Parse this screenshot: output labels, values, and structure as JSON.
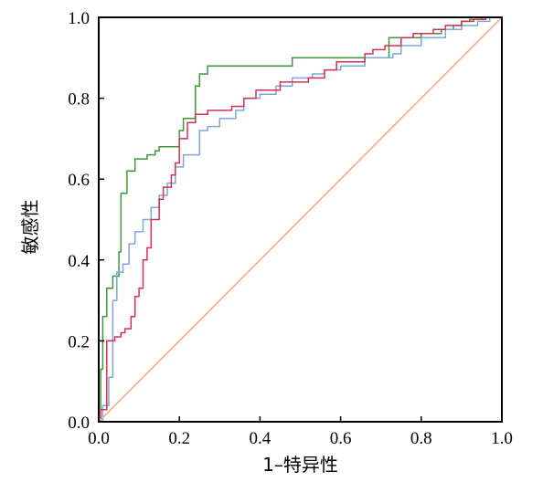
{
  "chart_data": {
    "type": "line",
    "xlabel": "1–特异性",
    "ylabel": "敏感性",
    "xlim": [
      0,
      1
    ],
    "ylim": [
      0,
      1
    ],
    "xticks": [
      "0.0",
      "0.2",
      "0.4",
      "0.6",
      "0.8",
      "1.0"
    ],
    "yticks": [
      "0.0",
      "0.2",
      "0.4",
      "0.6",
      "0.8",
      "1.0"
    ],
    "grid": false,
    "series": [
      {
        "color": "#3a9a3a",
        "x": [
          0,
          0.005,
          0.005,
          0.01,
          0.01,
          0.02,
          0.02,
          0.035,
          0.035,
          0.05,
          0.05,
          0.055,
          0.055,
          0.07,
          0.07,
          0.09,
          0.09,
          0.12,
          0.12,
          0.14,
          0.14,
          0.15,
          0.15,
          0.2,
          0.2,
          0.21,
          0.21,
          0.24,
          0.24,
          0.25,
          0.25,
          0.27,
          0.27,
          0.48,
          0.48,
          0.72,
          0.72,
          0.8,
          0.8,
          0.85,
          0.85,
          0.88,
          0.88,
          0.9,
          0.9,
          0.92,
          0.92,
          0.95,
          0.95,
          1.0
        ],
        "y": [
          0,
          0,
          0.13,
          0.13,
          0.26,
          0.26,
          0.33,
          0.33,
          0.36,
          0.36,
          0.42,
          0.42,
          0.565,
          0.565,
          0.62,
          0.62,
          0.65,
          0.65,
          0.66,
          0.66,
          0.67,
          0.67,
          0.68,
          0.68,
          0.72,
          0.72,
          0.75,
          0.75,
          0.83,
          0.83,
          0.86,
          0.86,
          0.88,
          0.88,
          0.9,
          0.9,
          0.95,
          0.95,
          0.96,
          0.96,
          0.97,
          0.97,
          0.98,
          0.98,
          0.99,
          0.99,
          0.995,
          0.995,
          1.0,
          1.0
        ]
      },
      {
        "color": "#7ba7de",
        "x": [
          0,
          0.01,
          0.01,
          0.025,
          0.025,
          0.035,
          0.035,
          0.045,
          0.045,
          0.06,
          0.06,
          0.075,
          0.075,
          0.09,
          0.09,
          0.11,
          0.11,
          0.13,
          0.13,
          0.15,
          0.15,
          0.17,
          0.17,
          0.19,
          0.19,
          0.21,
          0.21,
          0.25,
          0.25,
          0.27,
          0.27,
          0.3,
          0.3,
          0.34,
          0.34,
          0.36,
          0.36,
          0.4,
          0.4,
          0.44,
          0.44,
          0.48,
          0.48,
          0.53,
          0.53,
          0.56,
          0.56,
          0.6,
          0.6,
          0.66,
          0.66,
          0.73,
          0.73,
          0.75,
          0.75,
          0.8,
          0.8,
          0.86,
          0.86,
          0.9,
          0.9,
          0.94,
          0.94,
          0.97,
          0.97,
          1.0
        ],
        "y": [
          0,
          0,
          0.04,
          0.04,
          0.11,
          0.11,
          0.3,
          0.3,
          0.37,
          0.37,
          0.39,
          0.39,
          0.44,
          0.44,
          0.47,
          0.47,
          0.5,
          0.5,
          0.53,
          0.53,
          0.56,
          0.56,
          0.59,
          0.59,
          0.63,
          0.63,
          0.66,
          0.66,
          0.72,
          0.72,
          0.73,
          0.73,
          0.75,
          0.75,
          0.77,
          0.77,
          0.8,
          0.8,
          0.81,
          0.81,
          0.83,
          0.83,
          0.85,
          0.85,
          0.86,
          0.86,
          0.87,
          0.87,
          0.88,
          0.88,
          0.9,
          0.9,
          0.91,
          0.91,
          0.93,
          0.93,
          0.95,
          0.95,
          0.97,
          0.97,
          0.98,
          0.98,
          0.99,
          0.99,
          1.0,
          1.0
        ]
      },
      {
        "color": "#d63050",
        "x": [
          0,
          0.005,
          0.005,
          0.02,
          0.02,
          0.04,
          0.04,
          0.055,
          0.055,
          0.065,
          0.065,
          0.08,
          0.08,
          0.09,
          0.09,
          0.1,
          0.1,
          0.11,
          0.11,
          0.12,
          0.12,
          0.13,
          0.13,
          0.15,
          0.15,
          0.16,
          0.16,
          0.18,
          0.18,
          0.19,
          0.19,
          0.2,
          0.2,
          0.22,
          0.22,
          0.24,
          0.24,
          0.27,
          0.27,
          0.33,
          0.33,
          0.36,
          0.36,
          0.39,
          0.39,
          0.45,
          0.45,
          0.52,
          0.52,
          0.56,
          0.56,
          0.59,
          0.59,
          0.66,
          0.66,
          0.68,
          0.68,
          0.71,
          0.71,
          0.75,
          0.75,
          0.78,
          0.78,
          0.83,
          0.83,
          0.86,
          0.86,
          0.9,
          0.9,
          0.93,
          0.93,
          0.96,
          0.96,
          1.0
        ],
        "y": [
          0,
          0,
          0.03,
          0.03,
          0.2,
          0.2,
          0.21,
          0.21,
          0.22,
          0.22,
          0.23,
          0.23,
          0.26,
          0.26,
          0.31,
          0.31,
          0.33,
          0.33,
          0.4,
          0.4,
          0.43,
          0.43,
          0.5,
          0.5,
          0.55,
          0.55,
          0.58,
          0.58,
          0.61,
          0.61,
          0.64,
          0.64,
          0.7,
          0.7,
          0.74,
          0.74,
          0.76,
          0.76,
          0.77,
          0.77,
          0.78,
          0.78,
          0.8,
          0.8,
          0.82,
          0.82,
          0.84,
          0.84,
          0.85,
          0.85,
          0.87,
          0.87,
          0.89,
          0.89,
          0.91,
          0.91,
          0.92,
          0.92,
          0.93,
          0.93,
          0.95,
          0.95,
          0.96,
          0.96,
          0.97,
          0.97,
          0.98,
          0.98,
          0.99,
          0.99,
          0.995,
          0.995,
          1.0,
          1.0
        ]
      },
      {
        "color": "#f4a582",
        "x": [
          0,
          1
        ],
        "y": [
          0,
          1
        ]
      }
    ]
  }
}
